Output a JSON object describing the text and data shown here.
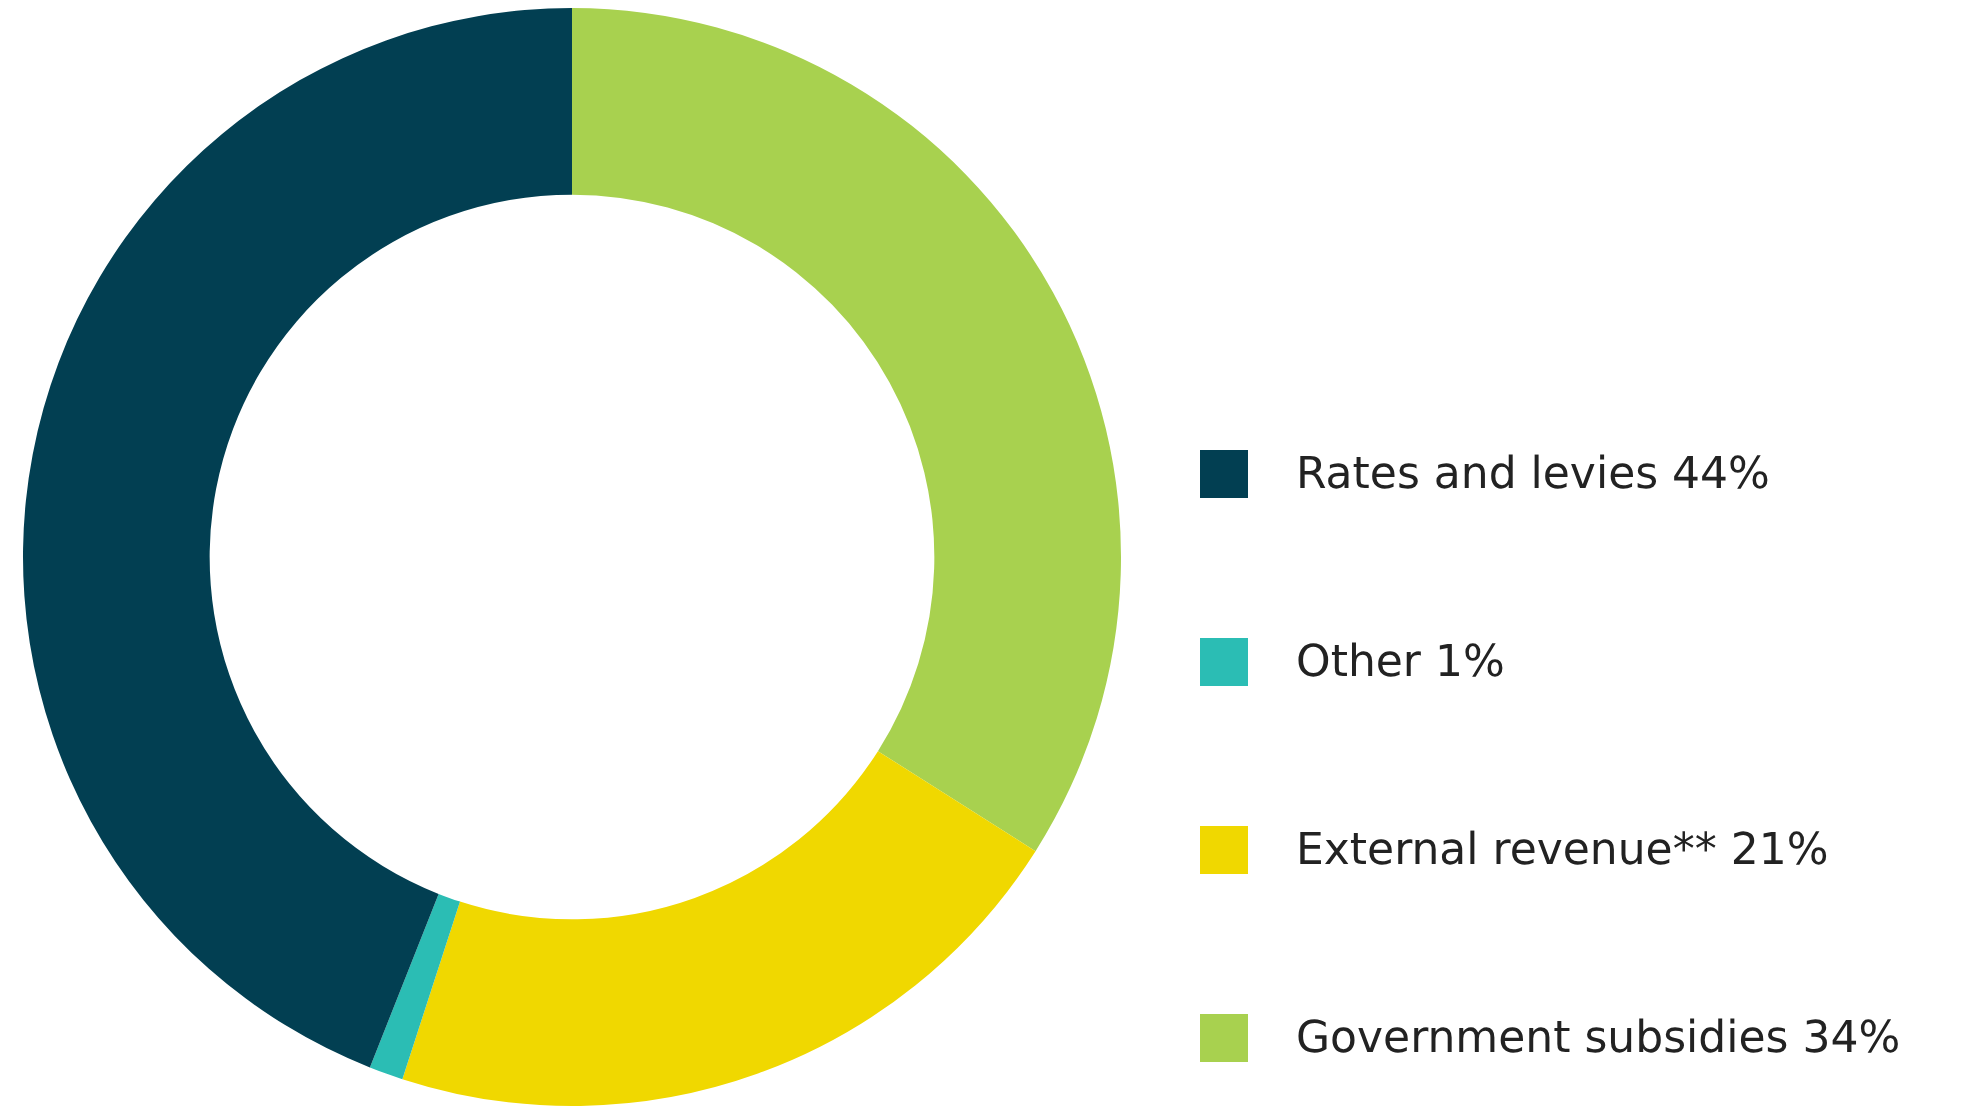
{
  "chart_data": {
    "type": "donut",
    "categories": [
      "Rates and levies",
      "Other",
      "External revenue**",
      "Government subsidies"
    ],
    "values": [
      44,
      1,
      21,
      34
    ],
    "value_labels": [
      "44%",
      "1%",
      "21%",
      "34%"
    ],
    "colors": [
      "#023f52",
      "#2bbdb4",
      "#f0d800",
      "#a8d14f"
    ],
    "legend": "right"
  }
}
